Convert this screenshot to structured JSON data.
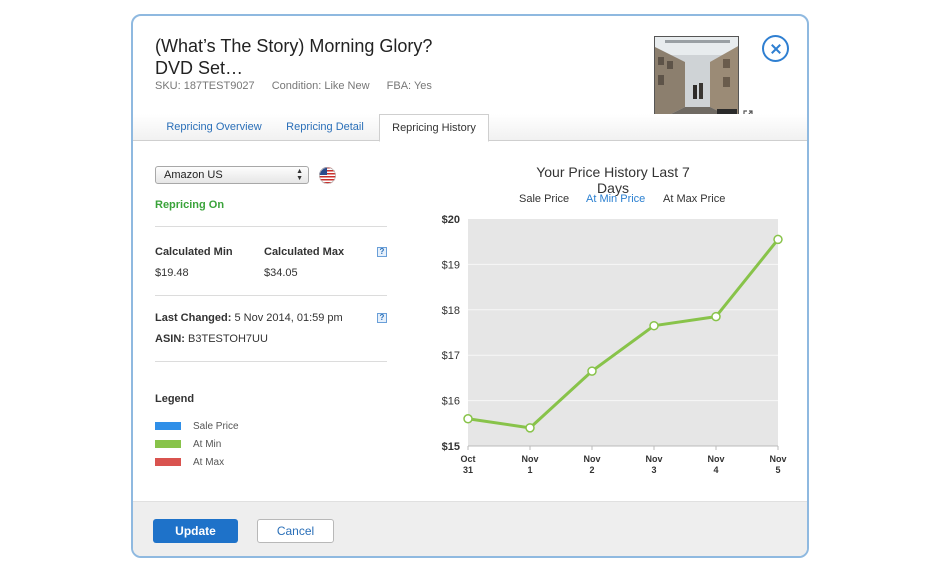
{
  "product": {
    "title": "(What’s The Story) Morning Glory? DVD Set…",
    "sku": "SKU: 187TEST9027",
    "condition": "Condition: Like New",
    "fba": "FBA: Yes"
  },
  "tabs": [
    {
      "label": "Repricing Overview",
      "active": false
    },
    {
      "label": "Repricing Detail",
      "active": false
    },
    {
      "label": "Repricing History",
      "active": true
    }
  ],
  "left": {
    "marketplace": "Amazon US",
    "marketplace_flag": "us-flag-icon",
    "status": "Repricing On",
    "calc_min_label": "Calculated Min",
    "calc_min_value": "$19.48",
    "calc_max_label": "Calculated Max",
    "calc_max_value": "$34.05",
    "last_changed_label": "Last Changed:",
    "last_changed_value": "5 Nov 2014, 01:59 pm",
    "asin_label": "ASIN:",
    "asin_value": "B3TESTOH7UU",
    "legend_title": "Legend",
    "legend": [
      {
        "label": "Sale Price",
        "color": "#2f8fe8"
      },
      {
        "label": "At Min",
        "color": "#88c34a"
      },
      {
        "label": "At Max",
        "color": "#d9534f"
      }
    ]
  },
  "chart_data": {
    "type": "line",
    "title": "Your Price History Last 7 Days",
    "legend_items": [
      {
        "name": "Sale Price",
        "active": false
      },
      {
        "name": "At Min Price",
        "active": true
      },
      {
        "name": "At Max Price",
        "active": false
      }
    ],
    "x_labels": [
      [
        "Oct",
        "31"
      ],
      [
        "Nov",
        "1"
      ],
      [
        "Nov",
        "2"
      ],
      [
        "Nov",
        "3"
      ],
      [
        "Nov",
        "4"
      ],
      [
        "Nov",
        "5"
      ]
    ],
    "y_ticks": [
      "$20",
      "$19",
      "$18",
      "$17",
      "$16",
      "$15"
    ],
    "ylim": [
      15,
      20
    ],
    "xlim": [
      0,
      5
    ],
    "series": [
      {
        "color": "#88c34a",
        "points": [
          [
            0,
            15.6
          ],
          [
            1,
            15.4
          ],
          [
            2,
            16.65
          ],
          [
            3,
            17.65
          ],
          [
            4,
            17.85
          ],
          [
            5,
            19.55
          ]
        ]
      }
    ],
    "grid": true
  },
  "buttons": {
    "update": "Update",
    "cancel": "Cancel"
  }
}
